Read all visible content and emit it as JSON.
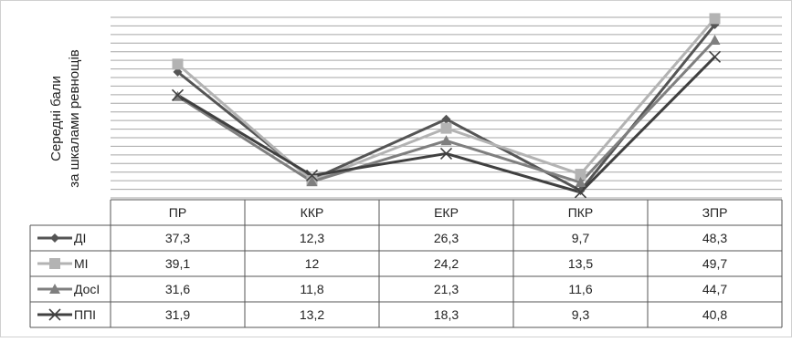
{
  "chart_data": {
    "type": "line",
    "title": "",
    "ylabel_line1": "Середні бали",
    "ylabel_line2": "за шкалами ревнощів",
    "categories": [
      "ПР",
      "ККР",
      "ЕКР",
      "ПКР",
      "ЗПР"
    ],
    "ylim": [
      8,
      50
    ],
    "grid": true,
    "legend": "left",
    "series": [
      {
        "name": "ДІ",
        "values": [
          37.3,
          12.3,
          26.3,
          9.7,
          48.3
        ],
        "value_labels": [
          "37,3",
          "12,3",
          "26,3",
          "9,7",
          "48,3"
        ],
        "color": "#555555",
        "marker": "diamond"
      },
      {
        "name": "МІ",
        "values": [
          39.1,
          12,
          24.2,
          13.5,
          49.7
        ],
        "value_labels": [
          "39,1",
          "12",
          "24,2",
          "13,5",
          "49,7"
        ],
        "color": "#b3b3b3",
        "marker": "square"
      },
      {
        "name": "ДосІ",
        "values": [
          31.6,
          11.8,
          21.3,
          11.6,
          44.7
        ],
        "value_labels": [
          "31,6",
          "11,8",
          "21,3",
          "11,6",
          "44,7"
        ],
        "color": "#7f7f7f",
        "marker": "triangle"
      },
      {
        "name": "ППІ",
        "values": [
          31.9,
          13.2,
          18.3,
          9.3,
          40.8
        ],
        "value_labels": [
          "31,9",
          "13,2",
          "18,3",
          "9,3",
          "40,8"
        ],
        "color": "#404040",
        "marker": "x"
      }
    ]
  }
}
